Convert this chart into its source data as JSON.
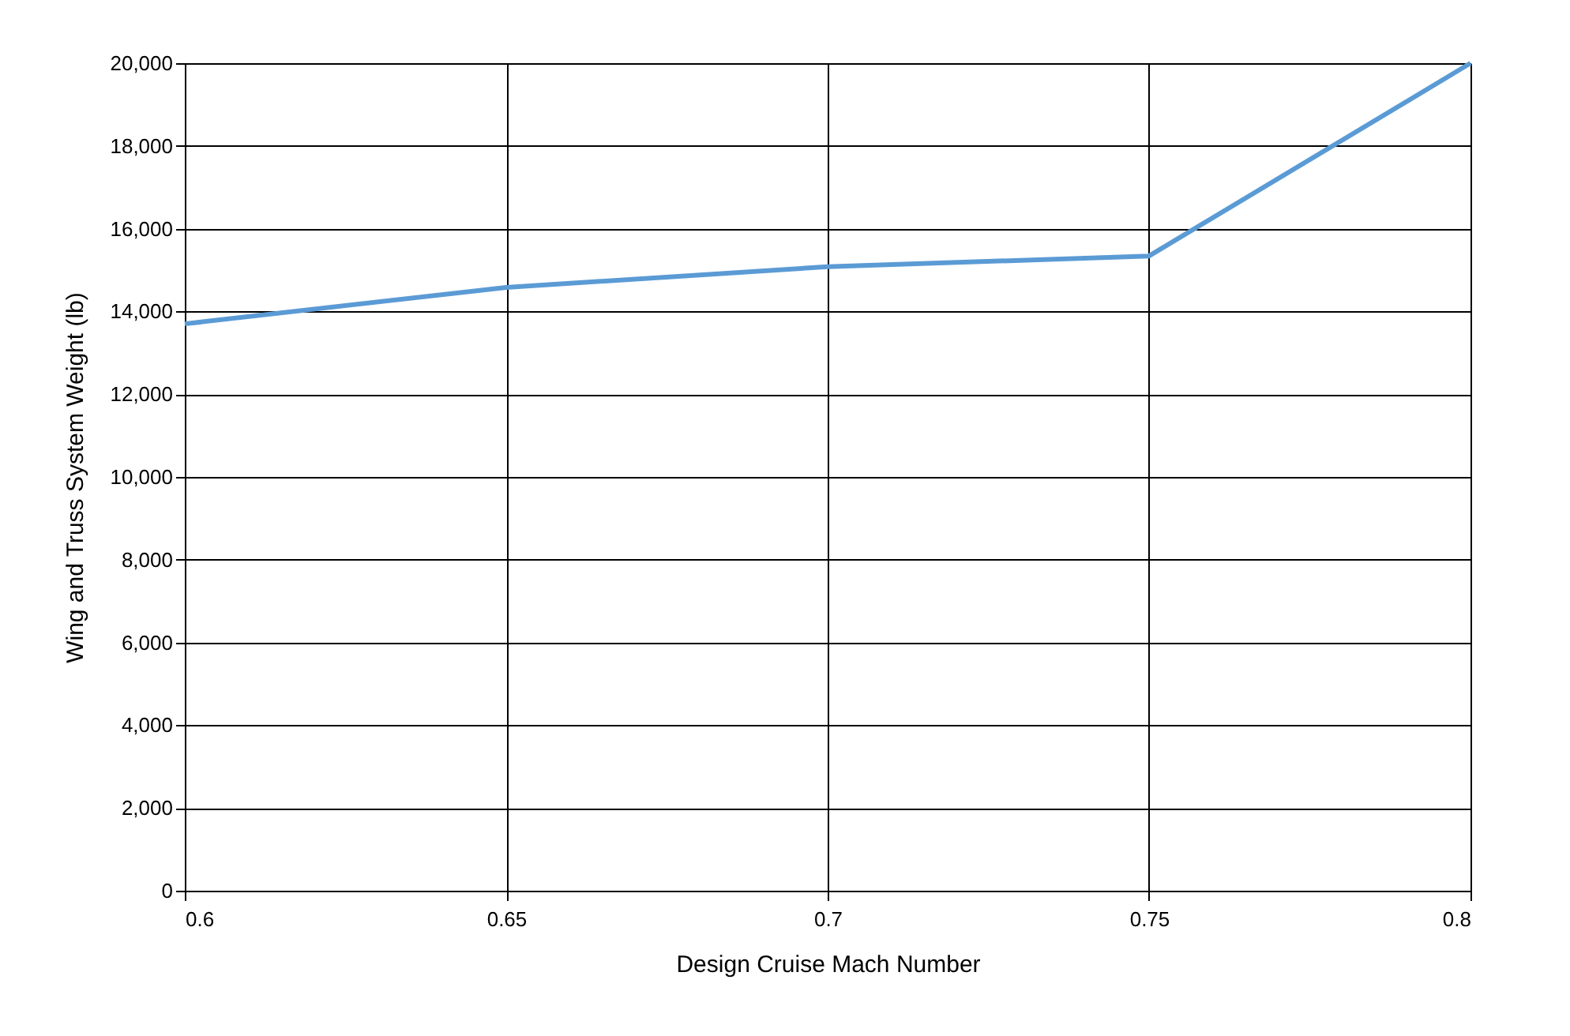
{
  "chart_data": {
    "type": "line",
    "xlabel": "Design Cruise Mach Number",
    "ylabel": "Wing and Truss System Weight (lb)",
    "x": [
      0.6,
      0.65,
      0.7,
      0.75,
      0.8
    ],
    "series": [
      {
        "color": "#5b9bd5",
        "values": [
          13700,
          14580,
          15080,
          15340,
          20000
        ]
      }
    ],
    "xlim": [
      0.6,
      0.8
    ],
    "xticks": [
      0.6,
      0.65,
      0.7,
      0.75,
      0.8
    ],
    "ylim": [
      0,
      20000
    ],
    "yticks": [
      0,
      {
        "value": 2000,
        "label": "2,000"
      },
      {
        "value": 4000,
        "label": "4,000"
      },
      {
        "value": 6000,
        "label": "6,000"
      },
      {
        "value": 8000,
        "label": "8,000"
      },
      {
        "value": 10000,
        "label": "10,000"
      },
      {
        "value": 12000,
        "label": "12,000"
      },
      {
        "value": 14000,
        "label": "14,000"
      },
      {
        "value": 16000,
        "label": "16,000"
      },
      {
        "value": 18000,
        "label": "18,000"
      },
      {
        "value": 20000,
        "label": "20,000"
      }
    ],
    "grid": true,
    "marker": "none",
    "line_style": "solid"
  }
}
